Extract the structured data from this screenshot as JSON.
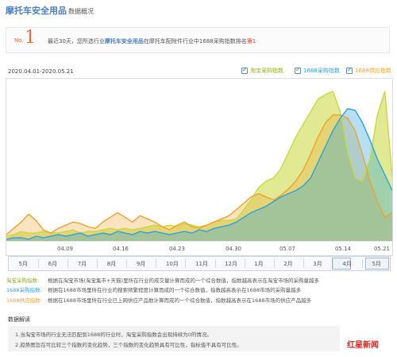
{
  "header": {
    "title": "摩托车安全用品",
    "subtitle": "数据概况"
  },
  "rank": {
    "no_label": "No.",
    "number": "1",
    "text_prefix": "最近30天，您所选行业",
    "industry": "摩托车安全用品",
    "text_middle": "在摩托车配附件行业中1688采购指数排名",
    "rank_value": "第1"
  },
  "date_range": "2020.04.01-2020.05.21",
  "legend": [
    {
      "label": "淘宝采购指数",
      "color": "#c8d93a"
    },
    {
      "label": "1688采购指数",
      "color": "#29a3e0"
    },
    {
      "label": "1688供应指数",
      "color": "#f0a22d"
    }
  ],
  "x_axis_labels": [
    "04.09",
    "04.16",
    "04.23",
    "04.30",
    "05.07",
    "05.14",
    "05.21"
  ],
  "months": [
    "5月",
    "6月",
    "7月",
    "8月",
    "9月",
    "10月",
    "11月",
    "12月",
    "1月",
    "2月",
    "3月",
    "4月",
    "5月"
  ],
  "descriptions": [
    {
      "key": "淘宝采购指数:",
      "text": "根据在淘宝市场(淘宝集市+天猫)里所在行业的成交量计算而成的一个综合数值，指数越高表示在淘宝市场的采购量越多",
      "color": "#9aab1e"
    },
    {
      "key": "1688采购指数:",
      "text": "根据在1688市场里所在行业的搜索频繁程度计算而成的一个综合数值，指数越高表示在1688市场的采购量越多",
      "color": "#29a3e0"
    },
    {
      "key": "1688供应指数:",
      "text": "根据在1688市场里所在行业已上网供应产品数计算而成的一个综合数值，指数越高表示在1688市场的供应产品越多",
      "color": "#f0a22d"
    }
  ],
  "notes": {
    "title": "数据解读",
    "items": [
      "1.当淘宝市场的行业无法匹配到1688的行业时，淘宝采购指数会出现持续为0的情况。",
      "2.趋势图旨在可比较三个指数的变化趋势，三个指数的变化趋势具有可比性，指标值不具有可比性。"
    ]
  },
  "watermark": "红星新闻",
  "chart_data": {
    "type": "area",
    "x_labels": [
      "04.09",
      "04.16",
      "04.23",
      "04.30",
      "05.07",
      "05.14",
      "05.21"
    ],
    "ylim": [
      0,
      100
    ],
    "grid": false,
    "legend_position": "top-right",
    "series": [
      {
        "name": "淘宝采购指数",
        "color": "#c8d93a",
        "values": [
          3,
          4,
          6,
          5,
          5,
          6,
          5,
          5,
          6,
          7,
          5,
          6,
          6,
          7,
          8,
          7,
          8,
          7,
          8,
          9,
          10,
          9,
          10,
          9,
          11,
          10,
          9,
          10,
          12,
          13,
          13,
          14,
          20,
          26,
          34,
          38,
          40,
          46,
          56,
          66,
          74,
          82,
          90,
          93,
          95,
          82,
          56,
          40,
          38,
          52,
          80,
          95,
          41
        ]
      },
      {
        "name": "1688采购指数",
        "color": "#29a3e0",
        "values": [
          1,
          2,
          2,
          1,
          3,
          2,
          3,
          4,
          3,
          4,
          5,
          3,
          4,
          5,
          4,
          6,
          5,
          4,
          6,
          5,
          6,
          5,
          4,
          5,
          6,
          5,
          7,
          6,
          8,
          9,
          10,
          12,
          15,
          18,
          20,
          22,
          25,
          28,
          30,
          32,
          35,
          40,
          50,
          60,
          70,
          78,
          84,
          83,
          75,
          64,
          52,
          42,
          32
        ]
      },
      {
        "name": "1688供应指数",
        "color": "#f0a22d",
        "values": [
          4,
          8,
          12,
          17,
          13,
          7,
          5,
          8,
          10,
          12,
          11,
          9,
          8,
          12,
          15,
          18,
          15,
          12,
          16,
          14,
          12,
          9,
          7,
          10,
          12,
          9,
          8,
          10,
          12,
          14,
          16,
          20,
          24,
          28,
          30,
          28,
          26,
          29,
          33,
          38,
          45,
          55,
          66,
          75,
          80,
          80,
          78,
          70,
          55,
          38,
          25,
          15,
          18
        ]
      }
    ]
  }
}
